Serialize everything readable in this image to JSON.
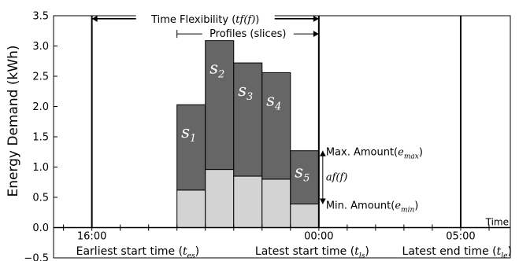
{
  "chart_data": {
    "type": "bar",
    "stacked": true,
    "ylabel": "Energy Demand (kWh)",
    "ylim": [
      -0.5,
      3.5
    ],
    "yticks": [
      "−0.5",
      "0.0",
      "0.5",
      "1.0",
      "1.5",
      "2.0",
      "2.5",
      "3.0",
      "3.5"
    ],
    "ytick_values": [
      -0.5,
      0.0,
      0.5,
      1.0,
      1.5,
      2.0,
      2.5,
      3.0,
      3.5
    ],
    "x_axis_title": "Time",
    "x_tick_labels": [
      {
        "label": "16:00",
        "slot": 0
      },
      {
        "label": "00:00",
        "slot": 8
      },
      {
        "label": "05:00",
        "slot": 13
      }
    ],
    "xlim_slots": [
      -1.35,
      14.75
    ],
    "grid": false,
    "colors": {
      "min_part": "#d3d3d3",
      "flex_part": "#666666",
      "edge": "#000000"
    },
    "slices": [
      {
        "name": "s",
        "sub": "1",
        "slot_start": 3,
        "min": 0.62,
        "max": 2.03
      },
      {
        "name": "s",
        "sub": "2",
        "slot_start": 4,
        "min": 0.96,
        "max": 3.09
      },
      {
        "name": "s",
        "sub": "3",
        "slot_start": 5,
        "min": 0.85,
        "max": 2.72
      },
      {
        "name": "s",
        "sub": "4",
        "slot_start": 6,
        "min": 0.8,
        "max": 2.56
      },
      {
        "name": "s",
        "sub": "5",
        "slot_start": 7,
        "min": 0.39,
        "max": 1.27
      }
    ],
    "vlines": [
      {
        "name": "earliest-start",
        "slot": 0
      },
      {
        "name": "latest-start",
        "slot": 8
      },
      {
        "name": "latest-end",
        "slot": 13
      }
    ],
    "annotations": {
      "time_flexibility": {
        "text": "Time Flexibility (",
        "math": "tf(f)",
        "close": ")",
        "y": 3.45,
        "from_slot": 0,
        "to_slot": 8
      },
      "profiles": {
        "text": "Profiles (slices)",
        "y": 3.2,
        "from_slot": 3,
        "to_slot": 8
      },
      "max_amount": {
        "text": "Max. Amount(",
        "math": "e",
        "sub": "max",
        "close": ")"
      },
      "amount_flex": {
        "math": "af(f)"
      },
      "min_amount": {
        "text": "Min. Amount(",
        "math": "e",
        "sub": "min",
        "close": ")"
      }
    },
    "bottom_labels": [
      {
        "name": "earliest-start-label",
        "text": "Earliest start time (",
        "math": "t",
        "sub": "es",
        "close": ")"
      },
      {
        "name": "latest-start-label",
        "text": "Latest start time (",
        "math": "t",
        "sub": "ls",
        "close": ")"
      },
      {
        "name": "latest-end-label",
        "text": "Latest end time (",
        "math": "t",
        "sub": "le",
        "close": ")"
      }
    ]
  }
}
